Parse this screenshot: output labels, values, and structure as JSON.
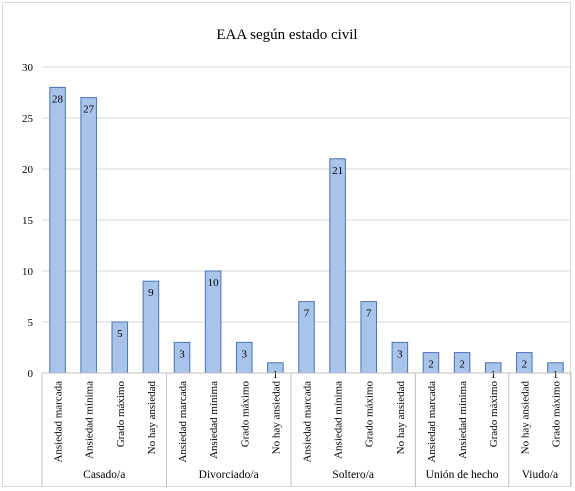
{
  "chart_data": {
    "type": "bar",
    "title": "EAA según estado civil",
    "ylim": [
      0,
      30
    ],
    "yticks": [
      0,
      5,
      10,
      15,
      20,
      25,
      30
    ],
    "grid": true,
    "bar_color": "#a9c4eb",
    "bar_edge": "#4a73b0",
    "groups": [
      {
        "name": "Casado/a",
        "categories": [
          "Ansiedad marcada",
          "Ansiedad mínima",
          "Grado máximo",
          "No hay ansiedad"
        ],
        "values": [
          28,
          27,
          5,
          9
        ]
      },
      {
        "name": "Divorciado/a",
        "categories": [
          "Ansiedad marcada",
          "Ansiedad mínima",
          "Grado máximo",
          "No hay ansiedad"
        ],
        "values": [
          3,
          10,
          3,
          1
        ]
      },
      {
        "name": "Soltero/a",
        "categories": [
          "Ansiedad marcada",
          "Ansiedad mínima",
          "Grado máximo",
          "No hay ansiedad"
        ],
        "values": [
          7,
          21,
          7,
          3
        ]
      },
      {
        "name": "Unión de hecho",
        "categories": [
          "Ansiedad marcada",
          "Ansiedad mínima",
          "Grado máximo"
        ],
        "values": [
          2,
          2,
          1
        ]
      },
      {
        "name": "Viudo/a",
        "categories": [
          "No hay ansiedad",
          "Grado máximo"
        ],
        "values": [
          2,
          1
        ]
      }
    ]
  }
}
